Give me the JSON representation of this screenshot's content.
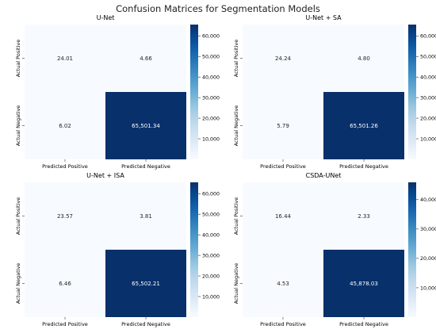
{
  "title": "Confusion Matrices for Segmentation Models",
  "chart_data": [
    {
      "type": "heatmap",
      "title": "U-Net",
      "x_categories": [
        "Predicted Positive",
        "Predicted Negative"
      ],
      "y_categories": [
        "Actual Positive",
        "Actual Negative"
      ],
      "values": [
        [
          24.01,
          4.66
        ],
        [
          6.02,
          65501.34
        ]
      ],
      "cell_labels": [
        [
          "24.01",
          "4.66"
        ],
        [
          "6.02",
          "65,501.34"
        ]
      ],
      "colorbar": {
        "colormap": "Blues",
        "range": [
          0,
          65501.34
        ],
        "ticks": [
          "10,000",
          "20,000",
          "30,000",
          "40,000",
          "50,000",
          "60,000"
        ],
        "tick_values": [
          10000,
          20000,
          30000,
          40000,
          50000,
          60000
        ]
      }
    },
    {
      "type": "heatmap",
      "title": "U-Net + SA",
      "x_categories": [
        "Predicted Positive",
        "Predicted Negative"
      ],
      "y_categories": [
        "Actual Positive",
        "Actual Negative"
      ],
      "values": [
        [
          24.24,
          4.8
        ],
        [
          5.79,
          65501.26
        ]
      ],
      "cell_labels": [
        [
          "24.24",
          "4.80"
        ],
        [
          "5.79",
          "65,501.26"
        ]
      ],
      "colorbar": {
        "colormap": "Blues",
        "range": [
          0,
          65501.26
        ],
        "ticks": [
          "10,000",
          "20,000",
          "30,000",
          "40,000",
          "50,000",
          "60,000"
        ],
        "tick_values": [
          10000,
          20000,
          30000,
          40000,
          50000,
          60000
        ]
      }
    },
    {
      "type": "heatmap",
      "title": "U-Net + ISA",
      "x_categories": [
        "Predicted Positive",
        "Predicted Negative"
      ],
      "y_categories": [
        "Actual Positive",
        "Actual Negative"
      ],
      "values": [
        [
          23.57,
          3.81
        ],
        [
          6.46,
          65502.21
        ]
      ],
      "cell_labels": [
        [
          "23.57",
          "3.81"
        ],
        [
          "6.46",
          "65,502.21"
        ]
      ],
      "colorbar": {
        "colormap": "Blues",
        "range": [
          0,
          65502.21
        ],
        "ticks": [
          "10,000",
          "20,000",
          "30,000",
          "40,000",
          "50,000",
          "60,000"
        ],
        "tick_values": [
          10000,
          20000,
          30000,
          40000,
          50000,
          60000
        ]
      }
    },
    {
      "type": "heatmap",
      "title": "CSDA-UNet",
      "x_categories": [
        "Predicted Positive",
        "Predicted Negative"
      ],
      "y_categories": [
        "Actual Positive",
        "Actual Negative"
      ],
      "values": [
        [
          16.44,
          2.33
        ],
        [
          4.53,
          45878.03
        ]
      ],
      "cell_labels": [
        [
          "16.44",
          "2.33"
        ],
        [
          "4.53",
          "45,878.03"
        ]
      ],
      "colorbar": {
        "colormap": "Blues",
        "range": [
          0,
          45878.03
        ],
        "ticks": [
          "10,000",
          "20,000",
          "30,000",
          "40,000"
        ],
        "tick_values": [
          10000,
          20000,
          30000,
          40000
        ]
      }
    }
  ]
}
